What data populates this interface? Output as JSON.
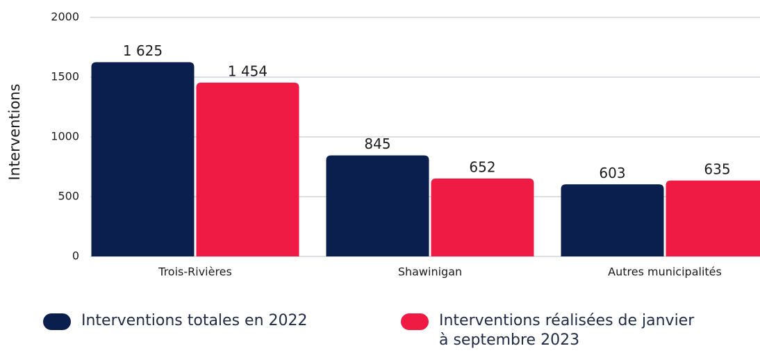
{
  "chart_data": {
    "type": "bar",
    "y_label": "Interventions",
    "categories": [
      "Trois-Rivières",
      "Shawinigan",
      "Autres municipalités"
    ],
    "series": [
      {
        "name": "Interventions totales en 2022",
        "color": "#0b1f4f",
        "values": [
          1625,
          845,
          603
        ],
        "value_labels": [
          "1 625",
          "845",
          "603"
        ]
      },
      {
        "name": "Interventions réalisées de janvier à septembre 2023",
        "color": "#ef1b45",
        "values": [
          1454,
          652,
          635
        ],
        "value_labels": [
          "1 454",
          "652",
          "635"
        ]
      }
    ],
    "ylim": [
      0,
      2000
    ],
    "yticks": [
      0,
      500,
      1000,
      1500,
      2000
    ],
    "grid": true,
    "legend": "bottom"
  }
}
